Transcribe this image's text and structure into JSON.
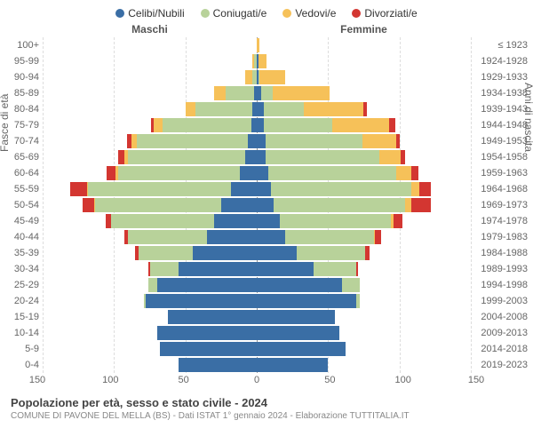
{
  "legend": {
    "items": [
      {
        "label": "Celibi/Nubili",
        "color": "#3a6ea5"
      },
      {
        "label": "Coniugati/e",
        "color": "#b8d29a"
      },
      {
        "label": "Vedovi/e",
        "color": "#f6c159"
      },
      {
        "label": "Divorziati/e",
        "color": "#d33631"
      }
    ]
  },
  "header": {
    "male": "Maschi",
    "female": "Femmine"
  },
  "axes": {
    "left_title": "Fasce di età",
    "right_title": "Anni di nascita",
    "xmax": 150,
    "xticks_left": [
      "150",
      "100",
      "50"
    ],
    "xticks_center": "0",
    "xticks_right": [
      "50",
      "100",
      "150"
    ]
  },
  "colors": {
    "celibi": "#3a6ea5",
    "coniugati": "#b8d29a",
    "vedovi": "#f6c159",
    "divorziati": "#d33631",
    "background": "#ffffff",
    "grid": "#dddddd"
  },
  "age_groups": [
    {
      "age": "100+",
      "birth": "≤ 1923",
      "m": {
        "cel": 0,
        "con": 0,
        "ved": 0,
        "div": 0
      },
      "f": {
        "cel": 0,
        "con": 0,
        "ved": 2,
        "div": 0
      }
    },
    {
      "age": "95-99",
      "birth": "1924-1928",
      "m": {
        "cel": 0,
        "con": 2,
        "ved": 1,
        "div": 0
      },
      "f": {
        "cel": 1,
        "con": 0,
        "ved": 6,
        "div": 0
      }
    },
    {
      "age": "90-94",
      "birth": "1929-1933",
      "m": {
        "cel": 0,
        "con": 3,
        "ved": 5,
        "div": 0
      },
      "f": {
        "cel": 1,
        "con": 1,
        "ved": 18,
        "div": 0
      }
    },
    {
      "age": "85-89",
      "birth": "1934-1938",
      "m": {
        "cel": 2,
        "con": 20,
        "ved": 8,
        "div": 0
      },
      "f": {
        "cel": 3,
        "con": 8,
        "ved": 40,
        "div": 0
      }
    },
    {
      "age": "80-84",
      "birth": "1939-1943",
      "m": {
        "cel": 3,
        "con": 40,
        "ved": 7,
        "div": 0
      },
      "f": {
        "cel": 5,
        "con": 28,
        "ved": 42,
        "div": 2
      }
    },
    {
      "age": "75-79",
      "birth": "1944-1948",
      "m": {
        "cel": 4,
        "con": 62,
        "ved": 6,
        "div": 2
      },
      "f": {
        "cel": 5,
        "con": 48,
        "ved": 40,
        "div": 4
      }
    },
    {
      "age": "70-74",
      "birth": "1949-1953",
      "m": {
        "cel": 6,
        "con": 78,
        "ved": 4,
        "div": 3
      },
      "f": {
        "cel": 6,
        "con": 68,
        "ved": 24,
        "div": 2
      }
    },
    {
      "age": "65-69",
      "birth": "1954-1958",
      "m": {
        "cel": 8,
        "con": 82,
        "ved": 3,
        "div": 4
      },
      "f": {
        "cel": 6,
        "con": 80,
        "ved": 15,
        "div": 3
      }
    },
    {
      "age": "60-64",
      "birth": "1959-1963",
      "m": {
        "cel": 12,
        "con": 85,
        "ved": 2,
        "div": 6
      },
      "f": {
        "cel": 8,
        "con": 90,
        "ved": 10,
        "div": 5
      }
    },
    {
      "age": "55-59",
      "birth": "1964-1968",
      "m": {
        "cel": 18,
        "con": 100,
        "ved": 1,
        "div": 12
      },
      "f": {
        "cel": 10,
        "con": 98,
        "ved": 6,
        "div": 8
      }
    },
    {
      "age": "50-54",
      "birth": "1969-1973",
      "m": {
        "cel": 25,
        "con": 88,
        "ved": 1,
        "div": 8
      },
      "f": {
        "cel": 12,
        "con": 92,
        "ved": 4,
        "div": 14
      }
    },
    {
      "age": "45-49",
      "birth": "1974-1978",
      "m": {
        "cel": 30,
        "con": 72,
        "ved": 0,
        "div": 4
      },
      "f": {
        "cel": 16,
        "con": 78,
        "ved": 2,
        "div": 6
      }
    },
    {
      "age": "40-44",
      "birth": "1979-1983",
      "m": {
        "cel": 35,
        "con": 55,
        "ved": 0,
        "div": 3
      },
      "f": {
        "cel": 20,
        "con": 62,
        "ved": 1,
        "div": 4
      }
    },
    {
      "age": "35-39",
      "birth": "1984-1988",
      "m": {
        "cel": 45,
        "con": 38,
        "ved": 0,
        "div": 2
      },
      "f": {
        "cel": 28,
        "con": 48,
        "ved": 0,
        "div": 3
      }
    },
    {
      "age": "30-34",
      "birth": "1989-1993",
      "m": {
        "cel": 55,
        "con": 20,
        "ved": 0,
        "div": 1
      },
      "f": {
        "cel": 40,
        "con": 30,
        "ved": 0,
        "div": 1
      }
    },
    {
      "age": "25-29",
      "birth": "1994-1998",
      "m": {
        "cel": 70,
        "con": 6,
        "ved": 0,
        "div": 0
      },
      "f": {
        "cel": 60,
        "con": 12,
        "ved": 0,
        "div": 0
      }
    },
    {
      "age": "20-24",
      "birth": "1999-2003",
      "m": {
        "cel": 78,
        "con": 1,
        "ved": 0,
        "div": 0
      },
      "f": {
        "cel": 70,
        "con": 2,
        "ved": 0,
        "div": 0
      }
    },
    {
      "age": "15-19",
      "birth": "2004-2008",
      "m": {
        "cel": 62,
        "con": 0,
        "ved": 0,
        "div": 0
      },
      "f": {
        "cel": 55,
        "con": 0,
        "ved": 0,
        "div": 0
      }
    },
    {
      "age": "10-14",
      "birth": "2009-2013",
      "m": {
        "cel": 70,
        "con": 0,
        "ved": 0,
        "div": 0
      },
      "f": {
        "cel": 58,
        "con": 0,
        "ved": 0,
        "div": 0
      }
    },
    {
      "age": "5-9",
      "birth": "2014-2018",
      "m": {
        "cel": 68,
        "con": 0,
        "ved": 0,
        "div": 0
      },
      "f": {
        "cel": 62,
        "con": 0,
        "ved": 0,
        "div": 0
      }
    },
    {
      "age": "0-4",
      "birth": "2019-2023",
      "m": {
        "cel": 55,
        "con": 0,
        "ved": 0,
        "div": 0
      },
      "f": {
        "cel": 50,
        "con": 0,
        "ved": 0,
        "div": 0
      }
    }
  ],
  "footer": {
    "title": "Popolazione per età, sesso e stato civile - 2024",
    "subtitle": "COMUNE DI PAVONE DEL MELLA (BS) - Dati ISTAT 1° gennaio 2024 - Elaborazione TUTTITALIA.IT"
  }
}
